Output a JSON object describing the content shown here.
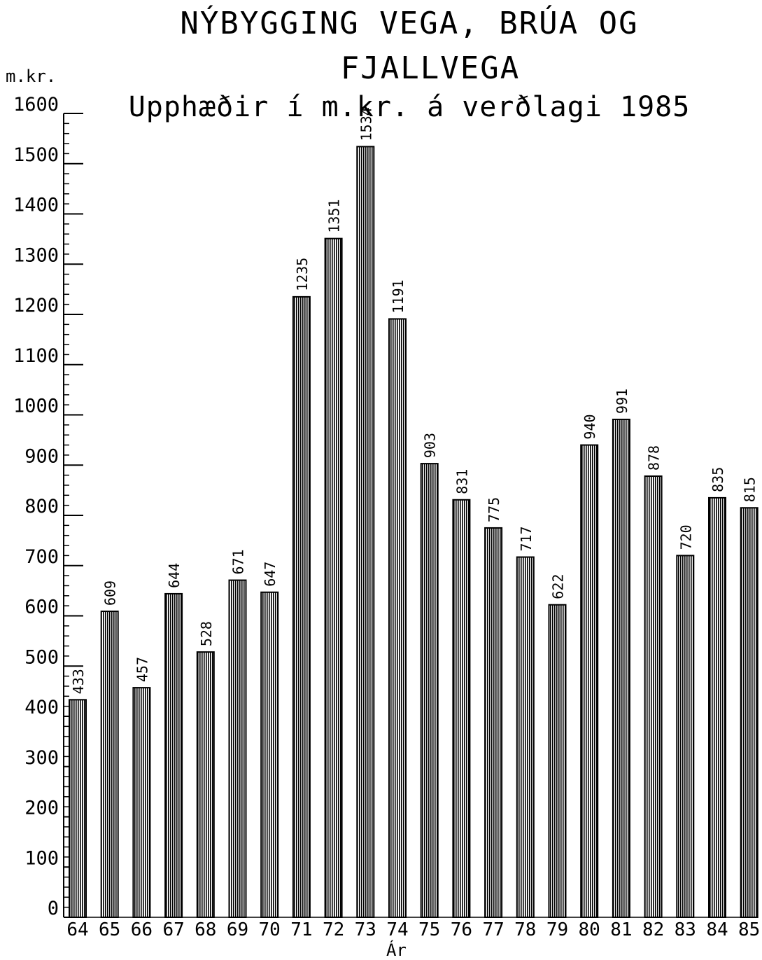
{
  "chart_data": {
    "type": "bar",
    "title": "NÝBYGGING VEGA, BRÚA OG",
    "title_line2": "FJALLVEGA",
    "subtitle": "Upphæðir í m.kr. á verðlagi 1985",
    "ylabel": "m.kr.",
    "xlabel": "Ár",
    "ylim": [
      0,
      1600
    ],
    "yticks": [
      0,
      100,
      200,
      300,
      400,
      500,
      600,
      700,
      800,
      900,
      1000,
      1100,
      1200,
      1300,
      1400,
      1500,
      1600
    ],
    "categories": [
      "64",
      "65",
      "66",
      "67",
      "68",
      "69",
      "70",
      "71",
      "72",
      "73",
      "74",
      "75",
      "76",
      "77",
      "78",
      "79",
      "80",
      "81",
      "82",
      "83",
      "84",
      "85"
    ],
    "values": [
      433,
      609,
      457,
      644,
      528,
      671,
      647,
      1235,
      1351,
      1534,
      1191,
      903,
      831,
      775,
      717,
      622,
      940,
      991,
      878,
      720,
      835,
      815
    ],
    "data_labels": true,
    "grid": false,
    "bar_fill": "vertical-hatch",
    "color": "#000000"
  }
}
